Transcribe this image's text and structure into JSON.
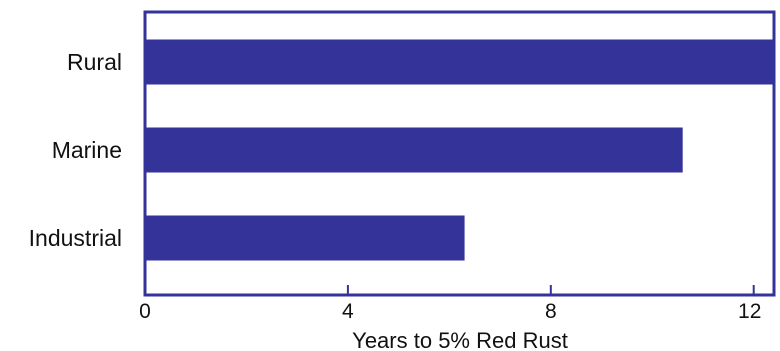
{
  "chart_data": {
    "type": "bar",
    "orientation": "horizontal",
    "categories": [
      "Rural",
      "Marine",
      "Industrial"
    ],
    "values": [
      12.4,
      10.6,
      6.3
    ],
    "xlabel": "Years to 5% Red Rust",
    "ylabel": "",
    "xlim": [
      0,
      12.4
    ],
    "xticks": [
      0,
      4,
      8,
      12
    ],
    "grid": false,
    "colors": {
      "bar": "#333399",
      "frame": "#333399"
    }
  }
}
